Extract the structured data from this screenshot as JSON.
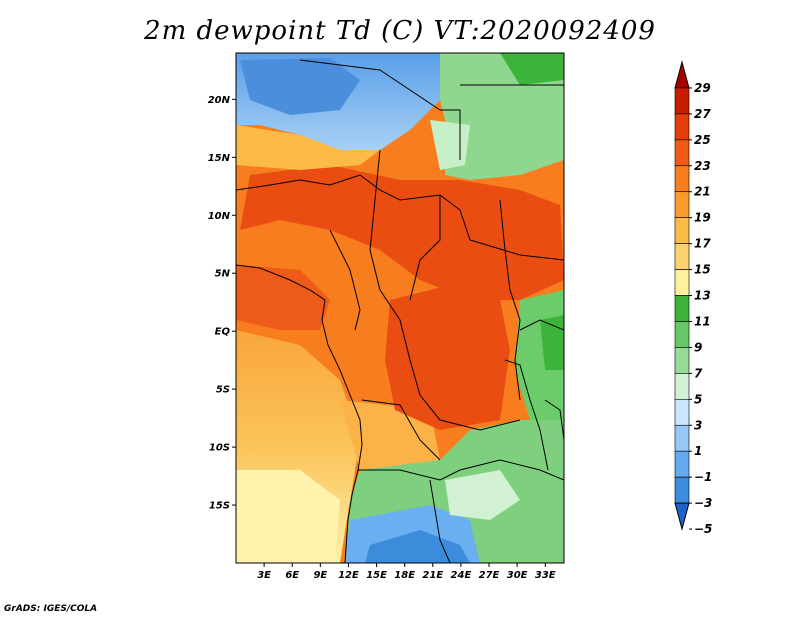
{
  "title": "2m dewpoint Td (C) VT:2020092409",
  "credit": "GrADS: IGES/COLA",
  "map": {
    "lon_range": [
      0,
      35
    ],
    "lat_range": [
      -20,
      24
    ],
    "lat_ticks": [
      {
        "value": 20,
        "label": "20N"
      },
      {
        "value": 15,
        "label": "15N"
      },
      {
        "value": 10,
        "label": "10N"
      },
      {
        "value": 5,
        "label": "5N"
      },
      {
        "value": 0,
        "label": "EQ"
      },
      {
        "value": -5,
        "label": "5S"
      },
      {
        "value": -10,
        "label": "10S"
      },
      {
        "value": -15,
        "label": "15S"
      }
    ],
    "lon_ticks": [
      {
        "value": 3,
        "label": "3E"
      },
      {
        "value": 6,
        "label": "6E"
      },
      {
        "value": 9,
        "label": "9E"
      },
      {
        "value": 12,
        "label": "12E"
      },
      {
        "value": 15,
        "label": "15E"
      },
      {
        "value": 18,
        "label": "18E"
      },
      {
        "value": 21,
        "label": "21E"
      },
      {
        "value": 24,
        "label": "24E"
      },
      {
        "value": 27,
        "label": "27E"
      },
      {
        "value": 30,
        "label": "30E"
      },
      {
        "value": 33,
        "label": "33E"
      }
    ]
  },
  "colorbar": {
    "levels": [
      29,
      27,
      25,
      23,
      21,
      19,
      17,
      15,
      13,
      11,
      9,
      7,
      5,
      3,
      1,
      -1,
      -3,
      -5
    ],
    "labels": [
      "29",
      "27",
      "25",
      "23",
      "21",
      "19",
      "17",
      "15",
      "13",
      "11",
      "9",
      "7",
      "5",
      "3",
      "1",
      "−1",
      "−3",
      "−5"
    ],
    "colors": [
      "#a50000",
      "#c81e00",
      "#e63c0a",
      "#f05a14",
      "#f77d1e",
      "#fa9b28",
      "#fbbb46",
      "#fdd26e",
      "#fff0a0",
      "#3cb43c",
      "#64c864",
      "#96dc96",
      "#d2f0d2",
      "#c8e6ff",
      "#96c8f5",
      "#64aaf0",
      "#3c8cdc",
      "#1e64c8"
    ]
  }
}
